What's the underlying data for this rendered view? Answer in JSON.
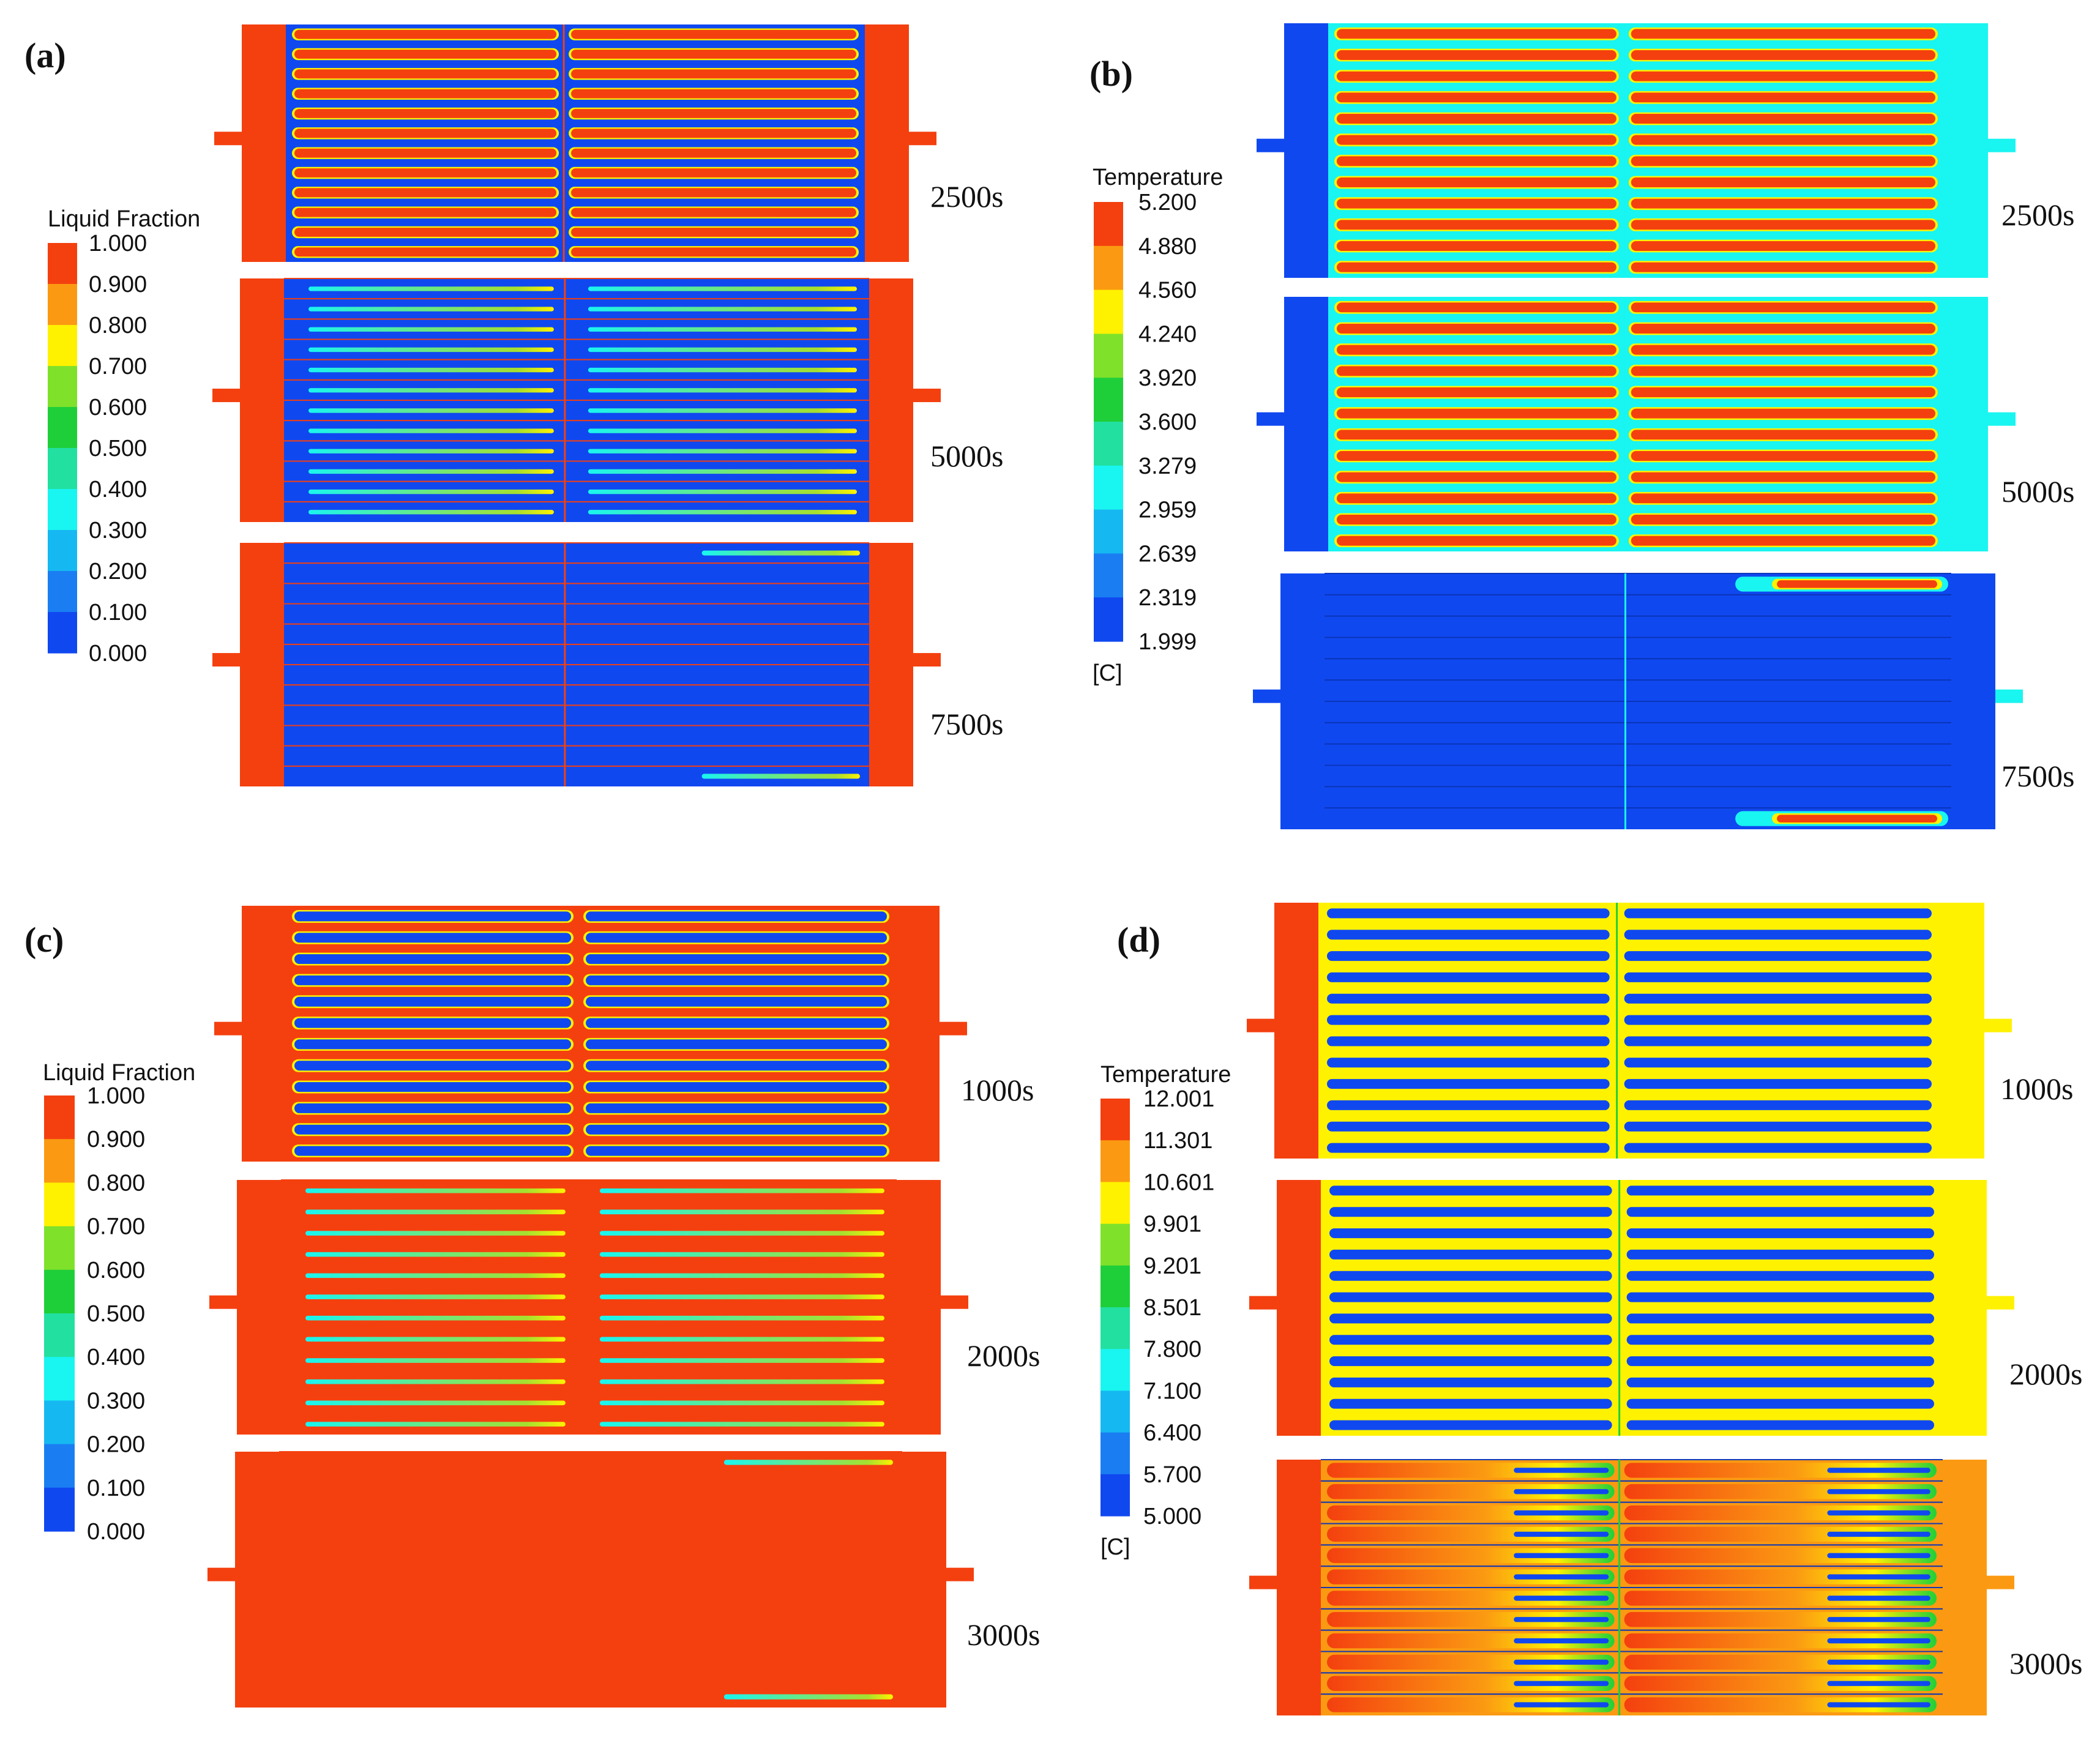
{
  "colors": {
    "red": "#f4400f",
    "orange": "#fb9a12",
    "yellow": "#fff200",
    "lime": "#a6e02f",
    "green": "#1fcf3a",
    "teal": "#22e0a0",
    "cyan": "#19f5f0",
    "sky": "#16b8f2",
    "blue": "#1048f0",
    "colormap": [
      "#1048f0",
      "#1a7ef2",
      "#16b8f2",
      "#19f5f0",
      "#22e0a0",
      "#1fcf3a",
      "#7fe12a",
      "#fff200",
      "#fb9a12",
      "#f4400f"
    ]
  },
  "panels": [
    {
      "id": "a",
      "label": "(a)",
      "legend": {
        "title": "Liquid Fraction",
        "unit": "",
        "ticks": [
          "1.000",
          "0.900",
          "0.800",
          "0.700",
          "0.600",
          "0.500",
          "0.400",
          "0.300",
          "0.200",
          "0.100",
          "0.000"
        ]
      },
      "snapshots": [
        {
          "time": "2500s",
          "frame": "red",
          "tube": "red",
          "gap": "blue",
          "style": "outline"
        },
        {
          "time": "5000s",
          "frame": "red",
          "tube": "cyan",
          "gap": "blue",
          "style": "streak"
        },
        {
          "time": "7500s",
          "frame": "red",
          "tube": "blue",
          "gap": "blue",
          "style": "endstreak"
        }
      ]
    },
    {
      "id": "b",
      "label": "(b)",
      "legend": {
        "title": "Temperature",
        "unit": "[C]",
        "ticks": [
          "5.200",
          "4.880",
          "4.560",
          "4.240",
          "3.920",
          "3.600",
          "3.279",
          "2.959",
          "2.639",
          "2.319",
          "1.999"
        ]
      },
      "snapshots": [
        {
          "time": "2500s",
          "frame": "blue",
          "tube": "red",
          "gap": "cyan",
          "style": "outline"
        },
        {
          "time": "5000s",
          "frame": "blue",
          "tube": "red",
          "gap": "cyan",
          "style": "outline"
        },
        {
          "time": "7500s",
          "frame": "blue",
          "tube": "blue",
          "gap": "blue",
          "style": "endhot"
        }
      ]
    },
    {
      "id": "c",
      "label": "(c)",
      "legend": {
        "title": "Liquid Fraction",
        "unit": "",
        "ticks": [
          "1.000",
          "0.900",
          "0.800",
          "0.700",
          "0.600",
          "0.500",
          "0.400",
          "0.300",
          "0.200",
          "0.100",
          "0.000"
        ]
      },
      "snapshots": [
        {
          "time": "1000s",
          "frame": "red",
          "tube": "blue",
          "gap": "red",
          "style": "outline"
        },
        {
          "time": "2000s",
          "frame": "red",
          "tube": "teal",
          "gap": "red",
          "style": "streak"
        },
        {
          "time": "3000s",
          "frame": "red",
          "tube": "red",
          "gap": "red",
          "style": "endstreak"
        }
      ]
    },
    {
      "id": "d",
      "label": "(d)",
      "legend": {
        "title": "Temperature",
        "unit": "[C]",
        "ticks": [
          "12.001",
          "11.301",
          "10.601",
          "9.901",
          "9.201",
          "8.501",
          "7.800",
          "7.100",
          "6.400",
          "5.700",
          "5.000"
        ]
      },
      "snapshots": [
        {
          "time": "1000s",
          "frame": "red",
          "tube": "blue",
          "gap": "yellow",
          "style": "outline"
        },
        {
          "time": "2000s",
          "frame": "red",
          "tube": "blue",
          "gap": "yellow",
          "style": "outline"
        },
        {
          "time": "3000s",
          "frame": "red",
          "tube": "orange",
          "gap": "orange",
          "style": "plume"
        }
      ]
    }
  ]
}
